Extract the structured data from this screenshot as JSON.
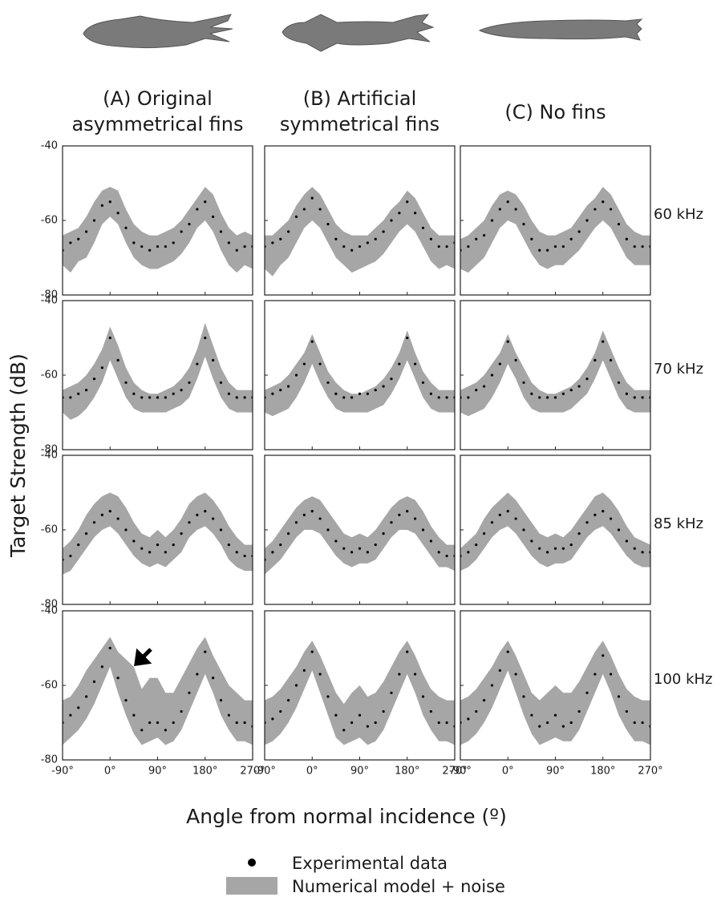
{
  "figure": {
    "columns": [
      [
        "(A) Original",
        "asymmetrical fins"
      ],
      [
        "(B) Artificial",
        "symmetrical fins"
      ],
      [
        "(C) No fins"
      ]
    ],
    "rows": [
      "60 kHz",
      "70 kHz",
      "85 kHz",
      "100 kHz"
    ],
    "y_label": "Target Strength (dB)",
    "x_label": "Angle from normal incidence (º)",
    "legend": [
      {
        "label": "Experimental data",
        "color": "#000000"
      },
      {
        "label": "Numerical model + noise",
        "color": "#a6a6a6"
      }
    ],
    "x": [
      -90,
      -75,
      -60,
      -45,
      -30,
      -15,
      0,
      15,
      30,
      45,
      60,
      75,
      90,
      105,
      120,
      135,
      150,
      165,
      180,
      195,
      210,
      225,
      240,
      255,
      270
    ],
    "xlim": [
      -90,
      270
    ],
    "xticks": [
      {
        "value": -90,
        "label": "-90°"
      },
      {
        "value": 0,
        "label": "0°"
      },
      {
        "value": 90,
        "label": "90°"
      },
      {
        "value": 180,
        "label": "180°"
      },
      {
        "value": 270,
        "label": "270°"
      }
    ],
    "ylim": [
      -80,
      -40
    ],
    "yticks": [
      -80,
      -60,
      -40
    ]
  },
  "chart_data": [
    {
      "type": "band",
      "band_high": [
        -64,
        -63,
        -62,
        -59,
        -55,
        -52,
        -51,
        -52,
        -57,
        -61,
        -63,
        -64,
        -64,
        -63,
        -62,
        -60,
        -57,
        -54,
        -51,
        -53,
        -58,
        -62,
        -64,
        -63,
        -64
      ],
      "band_low": [
        -72,
        -74,
        -71,
        -70,
        -66,
        -61,
        -59,
        -61,
        -66,
        -70,
        -72,
        -73,
        -73,
        -72,
        -71,
        -69,
        -66,
        -62,
        -60,
        -63,
        -68,
        -72,
        -74,
        -72,
        -73
      ],
      "points": [
        -68,
        -66,
        -65,
        -63,
        -60,
        -56,
        -55,
        -58,
        -62,
        -66,
        -67,
        -68,
        -67,
        -67,
        -66,
        -63,
        -61,
        -57,
        -55,
        -59,
        -63,
        -66,
        -68,
        -67,
        -67
      ]
    },
    {
      "type": "band",
      "band_high": [
        -64,
        -64,
        -62,
        -60,
        -56,
        -53,
        -51,
        -53,
        -57,
        -61,
        -63,
        -64,
        -64,
        -64,
        -62,
        -60,
        -57,
        -55,
        -52,
        -54,
        -58,
        -62,
        -64,
        -64,
        -64
      ],
      "band_low": [
        -73,
        -75,
        -72,
        -70,
        -66,
        -62,
        -60,
        -62,
        -66,
        -70,
        -72,
        -74,
        -73,
        -72,
        -71,
        -69,
        -66,
        -63,
        -61,
        -63,
        -67,
        -71,
        -73,
        -72,
        -73
      ],
      "points": [
        -67,
        -66,
        -65,
        -63,
        -59,
        -57,
        -54,
        -57,
        -61,
        -65,
        -67,
        -68,
        -67,
        -66,
        -65,
        -63,
        -60,
        -58,
        -55,
        -58,
        -62,
        -65,
        -67,
        -67,
        -66
      ]
    },
    {
      "type": "band",
      "band_high": [
        -65,
        -64,
        -62,
        -60,
        -56,
        -53,
        -52,
        -53,
        -56,
        -60,
        -63,
        -64,
        -64,
        -63,
        -62,
        -59,
        -56,
        -54,
        -51,
        -53,
        -57,
        -61,
        -63,
        -64,
        -64
      ],
      "band_low": [
        -73,
        -74,
        -72,
        -70,
        -66,
        -62,
        -60,
        -61,
        -65,
        -69,
        -72,
        -73,
        -72,
        -72,
        -70,
        -68,
        -65,
        -62,
        -60,
        -62,
        -66,
        -70,
        -72,
        -72,
        -72
      ],
      "points": [
        -68,
        -67,
        -65,
        -64,
        -60,
        -57,
        -55,
        -57,
        -61,
        -65,
        -68,
        -68,
        -67,
        -67,
        -65,
        -63,
        -60,
        -57,
        -55,
        -57,
        -61,
        -65,
        -67,
        -67,
        -67
      ]
    },
    {
      "type": "band",
      "band_high": [
        -64,
        -63,
        -62,
        -60,
        -57,
        -53,
        -47,
        -52,
        -58,
        -62,
        -64,
        -65,
        -65,
        -64,
        -63,
        -61,
        -58,
        -53,
        -46,
        -52,
        -58,
        -62,
        -64,
        -64,
        -64
      ],
      "band_low": [
        -70,
        -72,
        -71,
        -69,
        -66,
        -62,
        -56,
        -61,
        -66,
        -69,
        -70,
        -70,
        -70,
        -70,
        -69,
        -68,
        -66,
        -61,
        -55,
        -61,
        -66,
        -69,
        -70,
        -70,
        -70
      ],
      "points": [
        -66,
        -66,
        -65,
        -64,
        -61,
        -58,
        -50,
        -56,
        -62,
        -65,
        -66,
        -66,
        -66,
        -66,
        -65,
        -64,
        -62,
        -57,
        -50,
        -56,
        -62,
        -65,
        -66,
        -66,
        -66
      ]
    },
    {
      "type": "band",
      "band_high": [
        -64,
        -63,
        -62,
        -60,
        -57,
        -54,
        -49,
        -54,
        -59,
        -62,
        -64,
        -65,
        -65,
        -64,
        -63,
        -61,
        -58,
        -54,
        -48,
        -54,
        -59,
        -62,
        -64,
        -64,
        -64
      ],
      "band_low": [
        -70,
        -71,
        -70,
        -69,
        -66,
        -62,
        -57,
        -62,
        -66,
        -69,
        -70,
        -70,
        -70,
        -70,
        -69,
        -68,
        -65,
        -61,
        -56,
        -61,
        -66,
        -69,
        -70,
        -70,
        -70
      ],
      "points": [
        -66,
        -65,
        -64,
        -63,
        -60,
        -57,
        -51,
        -57,
        -62,
        -65,
        -66,
        -66,
        -65,
        -65,
        -64,
        -63,
        -61,
        -57,
        -50,
        -57,
        -62,
        -65,
        -66,
        -66,
        -66
      ]
    },
    {
      "type": "band",
      "band_high": [
        -64,
        -63,
        -62,
        -60,
        -57,
        -54,
        -49,
        -54,
        -58,
        -62,
        -64,
        -65,
        -65,
        -64,
        -63,
        -61,
        -58,
        -54,
        -48,
        -53,
        -58,
        -62,
        -64,
        -64,
        -64
      ],
      "band_low": [
        -70,
        -71,
        -70,
        -69,
        -66,
        -62,
        -57,
        -61,
        -66,
        -69,
        -70,
        -70,
        -70,
        -70,
        -69,
        -67,
        -65,
        -61,
        -56,
        -61,
        -66,
        -69,
        -70,
        -70,
        -70
      ],
      "points": [
        -66,
        -66,
        -64,
        -63,
        -60,
        -57,
        -51,
        -56,
        -62,
        -65,
        -66,
        -66,
        -66,
        -65,
        -64,
        -63,
        -61,
        -56,
        -51,
        -56,
        -62,
        -65,
        -66,
        -66,
        -66
      ]
    },
    {
      "type": "band",
      "band_high": [
        -65,
        -63,
        -60,
        -56,
        -53,
        -51,
        -50,
        -51,
        -54,
        -58,
        -61,
        -62,
        -60,
        -62,
        -60,
        -57,
        -53,
        -51,
        -50,
        -52,
        -55,
        -59,
        -62,
        -64,
        -64
      ],
      "band_low": [
        -72,
        -71,
        -68,
        -65,
        -62,
        -60,
        -59,
        -61,
        -64,
        -67,
        -69,
        -70,
        -69,
        -70,
        -68,
        -66,
        -62,
        -60,
        -59,
        -61,
        -64,
        -68,
        -70,
        -71,
        -71
      ],
      "points": [
        -68,
        -67,
        -64,
        -61,
        -58,
        -56,
        -55,
        -57,
        -60,
        -63,
        -65,
        -66,
        -64,
        -66,
        -64,
        -61,
        -58,
        -56,
        -55,
        -57,
        -60,
        -64,
        -66,
        -67,
        -67
      ]
    },
    {
      "type": "band",
      "band_high": [
        -65,
        -63,
        -60,
        -57,
        -54,
        -52,
        -51,
        -52,
        -55,
        -58,
        -61,
        -62,
        -61,
        -62,
        -60,
        -57,
        -54,
        -52,
        -51,
        -52,
        -55,
        -59,
        -62,
        -64,
        -64
      ],
      "band_low": [
        -72,
        -70,
        -68,
        -65,
        -62,
        -60,
        -60,
        -61,
        -64,
        -67,
        -69,
        -70,
        -69,
        -69,
        -68,
        -65,
        -62,
        -60,
        -60,
        -61,
        -64,
        -67,
        -70,
        -70,
        -71
      ],
      "points": [
        -68,
        -66,
        -64,
        -61,
        -58,
        -56,
        -55,
        -57,
        -60,
        -63,
        -65,
        -66,
        -65,
        -66,
        -64,
        -61,
        -58,
        -56,
        -55,
        -57,
        -60,
        -63,
        -66,
        -67,
        -67
      ]
    },
    {
      "type": "band",
      "band_high": [
        -65,
        -63,
        -61,
        -57,
        -54,
        -52,
        -50,
        -52,
        -55,
        -58,
        -61,
        -62,
        -61,
        -62,
        -60,
        -57,
        -54,
        -51,
        -50,
        -52,
        -55,
        -59,
        -62,
        -63,
        -64
      ],
      "band_low": [
        -71,
        -70,
        -68,
        -65,
        -62,
        -60,
        -59,
        -61,
        -64,
        -67,
        -69,
        -70,
        -69,
        -69,
        -68,
        -65,
        -62,
        -60,
        -59,
        -61,
        -64,
        -67,
        -69,
        -70,
        -70
      ],
      "points": [
        -67,
        -66,
        -64,
        -61,
        -58,
        -56,
        -55,
        -57,
        -60,
        -63,
        -65,
        -66,
        -65,
        -65,
        -64,
        -61,
        -58,
        -56,
        -55,
        -57,
        -60,
        -63,
        -65,
        -66,
        -66
      ]
    },
    {
      "type": "band",
      "band_high": [
        -64,
        -63,
        -60,
        -56,
        -53,
        -50,
        -47,
        -51,
        -53,
        -55,
        -61,
        -58,
        -58,
        -62,
        -62,
        -58,
        -54,
        -50,
        -47,
        -52,
        -56,
        -60,
        -62,
        -64,
        -64
      ],
      "band_low": [
        -76,
        -74,
        -72,
        -69,
        -65,
        -60,
        -55,
        -62,
        -68,
        -73,
        -76,
        -75,
        -74,
        -76,
        -75,
        -72,
        -67,
        -62,
        -57,
        -62,
        -68,
        -72,
        -75,
        -75,
        -76
      ],
      "points": [
        -70,
        -68,
        -66,
        -63,
        -59,
        -55,
        -50,
        -58,
        -64,
        -68,
        -72,
        -70,
        -70,
        -72,
        -70,
        -67,
        -62,
        -57,
        -51,
        -58,
        -64,
        -68,
        -70,
        -70,
        -71
      ]
    },
    {
      "type": "band",
      "band_high": [
        -64,
        -63,
        -61,
        -58,
        -55,
        -51,
        -48,
        -52,
        -57,
        -62,
        -65,
        -62,
        -60,
        -63,
        -62,
        -59,
        -55,
        -51,
        -48,
        -52,
        -57,
        -61,
        -63,
        -64,
        -64
      ],
      "band_low": [
        -76,
        -75,
        -73,
        -70,
        -66,
        -61,
        -56,
        -62,
        -68,
        -74,
        -76,
        -75,
        -74,
        -76,
        -75,
        -72,
        -67,
        -62,
        -57,
        -62,
        -68,
        -72,
        -75,
        -75,
        -76
      ],
      "points": [
        -70,
        -69,
        -67,
        -64,
        -60,
        -56,
        -51,
        -57,
        -63,
        -68,
        -72,
        -70,
        -68,
        -71,
        -70,
        -67,
        -62,
        -57,
        -51,
        -57,
        -63,
        -67,
        -70,
        -70,
        -71
      ]
    },
    {
      "type": "band",
      "band_high": [
        -64,
        -63,
        -61,
        -58,
        -55,
        -51,
        -48,
        -52,
        -57,
        -62,
        -64,
        -62,
        -60,
        -62,
        -62,
        -59,
        -55,
        -51,
        -48,
        -52,
        -57,
        -61,
        -63,
        -64,
        -64
      ],
      "band_low": [
        -76,
        -75,
        -73,
        -70,
        -66,
        -61,
        -56,
        -62,
        -68,
        -73,
        -76,
        -75,
        -74,
        -75,
        -75,
        -72,
        -67,
        -62,
        -57,
        -62,
        -68,
        -72,
        -75,
        -75,
        -76
      ],
      "points": [
        -70,
        -69,
        -67,
        -64,
        -60,
        -56,
        -51,
        -57,
        -63,
        -68,
        -71,
        -70,
        -68,
        -71,
        -70,
        -67,
        -62,
        -57,
        -52,
        -57,
        -63,
        -67,
        -70,
        -70,
        -71
      ]
    }
  ]
}
